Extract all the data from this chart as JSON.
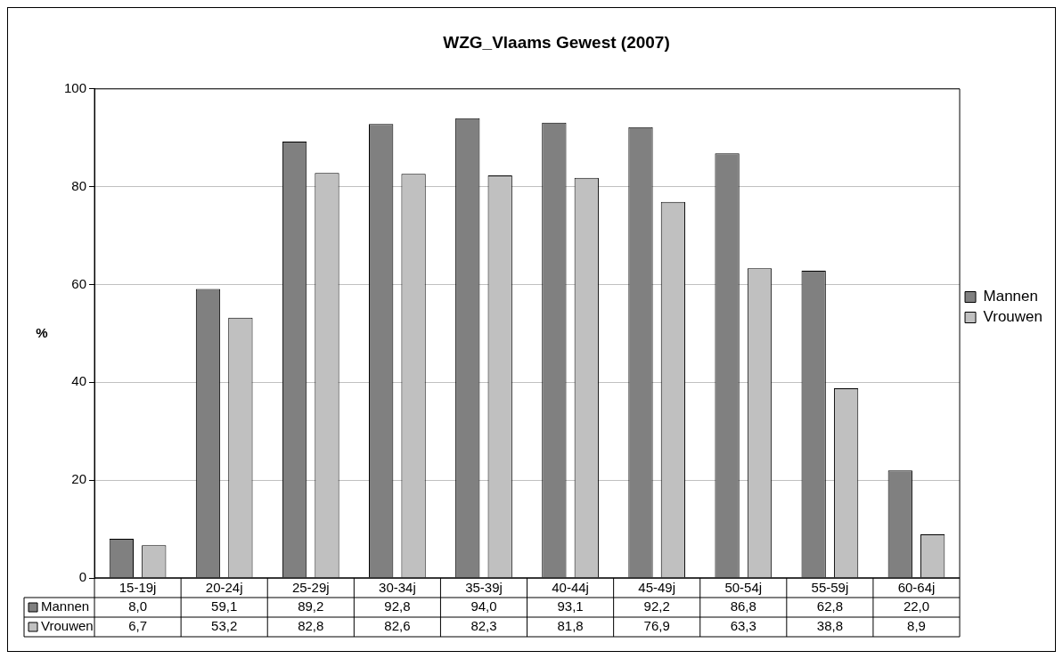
{
  "chart_data": {
    "type": "bar",
    "title": "WZG_Vlaams Gewest (2007)",
    "ylabel": "%",
    "categories": [
      "15-19j",
      "20-24j",
      "25-29j",
      "30-34j",
      "35-39j",
      "40-44j",
      "45-49j",
      "50-54j",
      "55-59j",
      "60-64j"
    ],
    "series": [
      {
        "name": "Mannen",
        "color": "#808080",
        "values": [
          8.0,
          59.1,
          89.2,
          92.8,
          94.0,
          93.1,
          92.2,
          86.8,
          62.8,
          22.0
        ],
        "value_labels": [
          "8,0",
          "59,1",
          "89,2",
          "92,8",
          "94,0",
          "93,1",
          "92,2",
          "86,8",
          "62,8",
          "22,0"
        ]
      },
      {
        "name": "Vrouwen",
        "color": "#c0c0c0",
        "values": [
          6.7,
          53.2,
          82.8,
          82.6,
          82.3,
          81.8,
          76.9,
          63.3,
          38.8,
          8.9
        ],
        "value_labels": [
          "6,7",
          "53,2",
          "82,8",
          "82,6",
          "82,3",
          "81,8",
          "76,9",
          "63,3",
          "38,8",
          "8,9"
        ]
      }
    ],
    "ylim": [
      0,
      100
    ],
    "yticks": [
      0,
      20,
      40,
      60,
      80,
      100
    ],
    "grid": "y",
    "legend": "right"
  }
}
